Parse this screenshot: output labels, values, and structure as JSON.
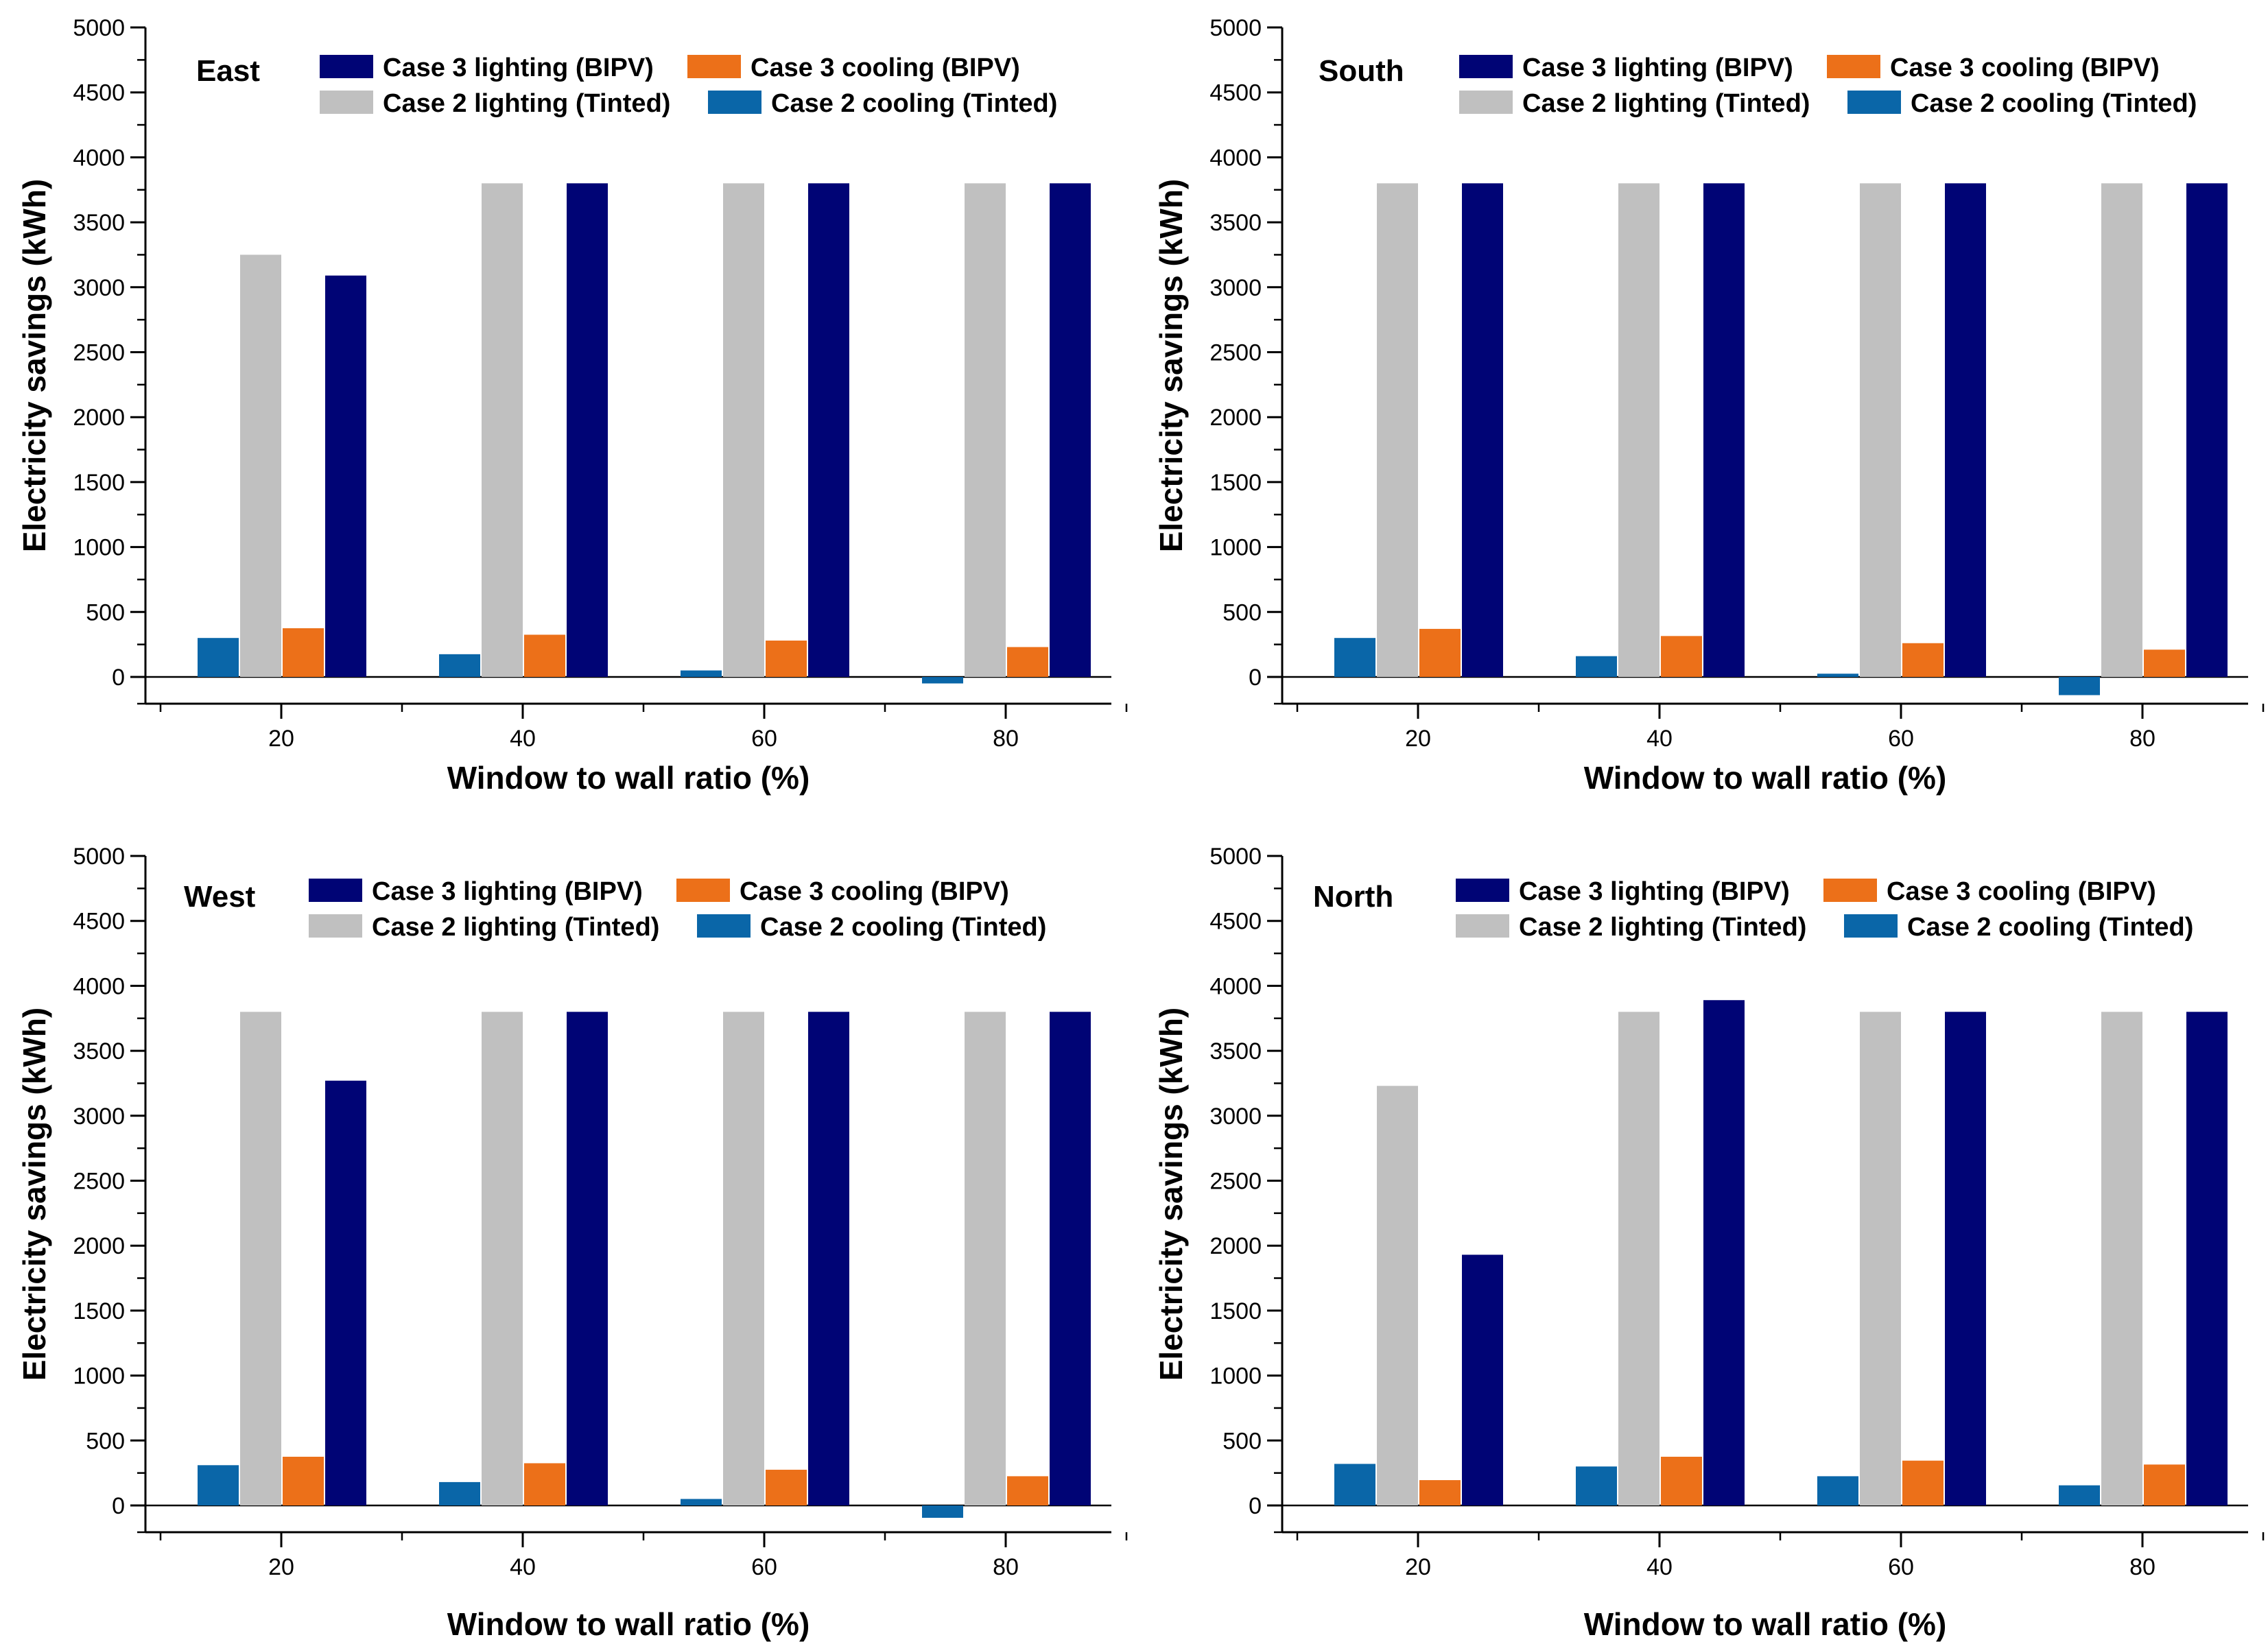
{
  "figure": {
    "colors": {
      "case3_lighting": "#000475",
      "case3_cooling": "#EC7019",
      "case2_lighting": "#C0C0C0",
      "case2_cooling": "#0A66A8"
    }
  },
  "chart_data": [
    {
      "type": "bar",
      "title": "East",
      "xlabel": "Window to wall ratio (%)",
      "ylabel": "Electricity savings (kWh)",
      "categories": [
        "20",
        "40",
        "60",
        "80"
      ],
      "ylim": [
        -200,
        5000
      ],
      "yticks": [
        0,
        500,
        1000,
        1500,
        2000,
        2500,
        3000,
        3500,
        4000,
        4500,
        5000
      ],
      "series": [
        {
          "name": "Case 2 cooling (Tinted)",
          "key": "case2_cooling",
          "values": [
            300,
            175,
            50,
            -50
          ]
        },
        {
          "name": "Case 2 lighting (Tinted)",
          "key": "case2_lighting",
          "values": [
            3250,
            3800,
            3800,
            3800
          ]
        },
        {
          "name": "Case 3 cooling (BIPV)",
          "key": "case3_cooling",
          "values": [
            375,
            325,
            280,
            230
          ]
        },
        {
          "name": "Case 3 lighting (BIPV)",
          "key": "case3_lighting",
          "values": [
            3090,
            3800,
            3800,
            3800
          ]
        }
      ]
    },
    {
      "type": "bar",
      "title": "South",
      "xlabel": "Window to wall ratio (%)",
      "ylabel": "Electricity savings (kWh)",
      "categories": [
        "20",
        "40",
        "60",
        "80"
      ],
      "ylim": [
        -200,
        5000
      ],
      "yticks": [
        0,
        500,
        1000,
        1500,
        2000,
        2500,
        3000,
        3500,
        4000,
        4500,
        5000
      ],
      "series": [
        {
          "name": "Case 2 cooling (Tinted)",
          "key": "case2_cooling",
          "values": [
            300,
            160,
            25,
            -140
          ]
        },
        {
          "name": "Case 2 lighting (Tinted)",
          "key": "case2_lighting",
          "values": [
            3800,
            3800,
            3800,
            3800
          ]
        },
        {
          "name": "Case 3 cooling (BIPV)",
          "key": "case3_cooling",
          "values": [
            370,
            315,
            260,
            210
          ]
        },
        {
          "name": "Case 3 lighting (BIPV)",
          "key": "case3_lighting",
          "values": [
            3800,
            3800,
            3800,
            3800
          ]
        }
      ]
    },
    {
      "type": "bar",
      "title": "West",
      "xlabel": "Window to wall ratio (%)",
      "ylabel": "Electricity savings (kWh)",
      "categories": [
        "20",
        "40",
        "60",
        "80"
      ],
      "ylim": [
        -200,
        5000
      ],
      "yticks": [
        0,
        500,
        1000,
        1500,
        2000,
        2500,
        3000,
        3500,
        4000,
        4500,
        5000
      ],
      "series": [
        {
          "name": "Case 2 cooling (Tinted)",
          "key": "case2_cooling",
          "values": [
            310,
            180,
            50,
            -95
          ]
        },
        {
          "name": "Case 2 lighting (Tinted)",
          "key": "case2_lighting",
          "values": [
            3800,
            3800,
            3800,
            3800
          ]
        },
        {
          "name": "Case 3 cooling (BIPV)",
          "key": "case3_cooling",
          "values": [
            375,
            325,
            275,
            225
          ]
        },
        {
          "name": "Case 3 lighting (BIPV)",
          "key": "case3_lighting",
          "values": [
            3270,
            3800,
            3800,
            3800
          ]
        }
      ]
    },
    {
      "type": "bar",
      "title": "North",
      "xlabel": "Window to wall ratio (%)",
      "ylabel": "Electricity savings (kWh)",
      "categories": [
        "20",
        "40",
        "60",
        "80"
      ],
      "ylim": [
        -200,
        5000
      ],
      "yticks": [
        0,
        500,
        1000,
        1500,
        2000,
        2500,
        3000,
        3500,
        4000,
        4500,
        5000
      ],
      "series": [
        {
          "name": "Case 2 cooling (Tinted)",
          "key": "case2_cooling",
          "values": [
            320,
            300,
            225,
            155
          ]
        },
        {
          "name": "Case 2 lighting (Tinted)",
          "key": "case2_lighting",
          "values": [
            3230,
            3800,
            3800,
            3800
          ]
        },
        {
          "name": "Case 3 cooling (BIPV)",
          "key": "case3_cooling",
          "values": [
            195,
            375,
            345,
            315
          ]
        },
        {
          "name": "Case 3 lighting (BIPV)",
          "key": "case3_lighting",
          "values": [
            1930,
            3890,
            3800,
            3800
          ]
        }
      ]
    }
  ]
}
